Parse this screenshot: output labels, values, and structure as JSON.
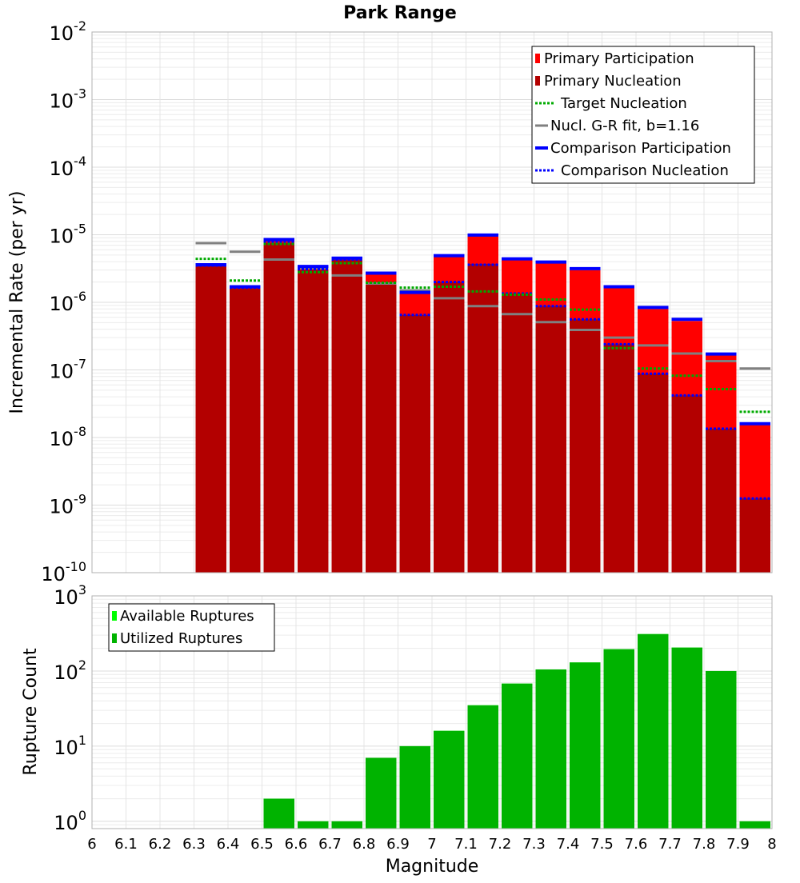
{
  "chart_data": [
    {
      "type": "bar",
      "title": "Park Range",
      "xlabel": "",
      "ylabel": "Incremental Rate (per yr)",
      "xlim": [
        6.0,
        8.0
      ],
      "ylim": [
        1e-10,
        0.01
      ],
      "log_y": true,
      "grid": true,
      "legend_placement": "top-right",
      "x": [
        6.35,
        6.45,
        6.55,
        6.65,
        6.75,
        6.85,
        6.95,
        7.05,
        7.15,
        7.25,
        7.35,
        7.45,
        7.55,
        7.65,
        7.75,
        7.85,
        7.95
      ],
      "series": [
        {
          "name": "Primary Participation",
          "style": "bar",
          "color": "#ff0000",
          "values": [
            3.5e-06,
            1.65e-06,
            8.3e-06,
            3.3e-06,
            4.4e-06,
            2.6e-06,
            1.35e-06,
            4.7e-06,
            9.5e-06,
            4.3e-06,
            3.8e-06,
            3e-06,
            1.65e-06,
            8e-07,
            5.3e-07,
            1.65e-07,
            1.55e-08
          ]
        },
        {
          "name": "Primary Nucleation",
          "style": "bar",
          "color": "#b30000",
          "values": [
            3.4e-06,
            1.6e-06,
            7.5e-06,
            3e-06,
            4.2e-06,
            2e-06,
            6.5e-07,
            2e-06,
            3.7e-06,
            1.35e-06,
            8.8e-07,
            5.6e-07,
            2.4e-07,
            8.8e-08,
            4.2e-08,
            1.35e-08,
            1.25e-09
          ]
        },
        {
          "name": "Target Nucleation",
          "style": "dotted",
          "color": "#00aa00",
          "values": [
            4.4e-06,
            2.1e-06,
            7.3e-06,
            2.8e-06,
            3.8e-06,
            1.95e-06,
            1.65e-06,
            1.7e-06,
            1.45e-06,
            1.3e-06,
            1.1e-06,
            7.8e-07,
            2.1e-07,
            1.05e-07,
            8.2e-08,
            5.2e-08,
            2.4e-08
          ]
        },
        {
          "name": "Nucl. G-R fit, b=1.16",
          "style": "solid",
          "color": "#808080",
          "values": [
            7.5e-06,
            5.6e-06,
            4.3e-06,
            3.2e-06,
            2.5e-06,
            1.9e-06,
            1.5e-06,
            1.15e-06,
            8.8e-07,
            6.7e-07,
            5.1e-07,
            3.9e-07,
            3e-07,
            2.3e-07,
            1.75e-07,
            1.35e-07,
            1.05e-07
          ]
        },
        {
          "name": "Comparison Participation",
          "style": "solid",
          "color": "#0000ff",
          "values": [
            3.6e-06,
            1.7e-06,
            8.5e-06,
            3.4e-06,
            4.5e-06,
            2.7e-06,
            1.4e-06,
            4.9e-06,
            9.9e-06,
            4.4e-06,
            3.95e-06,
            3.15e-06,
            1.7e-06,
            8.4e-07,
            5.6e-07,
            1.72e-07,
            1.6e-08
          ]
        },
        {
          "name": "Comparison Nucleation",
          "style": "dotted",
          "color": "#0000ff",
          "values": [
            3.5e-06,
            1.65e-06,
            7.8e-06,
            3.1e-06,
            4.3e-06,
            1.95e-06,
            6.5e-07,
            2e-06,
            3.6e-06,
            1.35e-06,
            8.8e-07,
            5.6e-07,
            2.4e-07,
            8.8e-08,
            4.2e-08,
            1.35e-08,
            1.25e-09
          ]
        }
      ]
    },
    {
      "type": "bar",
      "title": "",
      "xlabel": "Magnitude",
      "ylabel": "Rupture Count",
      "xlim": [
        6.0,
        8.0
      ],
      "ylim": [
        0.8,
        1000
      ],
      "log_y": true,
      "grid": true,
      "legend_placement": "top-left",
      "x": [
        6.55,
        6.65,
        6.75,
        6.85,
        6.95,
        7.05,
        7.15,
        7.25,
        7.35,
        7.45,
        7.55,
        7.65,
        7.75,
        7.85,
        7.95
      ],
      "series": [
        {
          "name": "Available Ruptures",
          "style": "bar",
          "color": "#00ff00",
          "values": [
            2,
            1,
            1,
            7,
            10,
            16,
            35,
            68,
            105,
            130,
            195,
            310,
            205,
            100,
            1
          ]
        },
        {
          "name": "Utilized Ruptures",
          "style": "bar",
          "color": "#00b300",
          "values": [
            2,
            1,
            1,
            7,
            10,
            16,
            35,
            68,
            105,
            130,
            195,
            310,
            205,
            100,
            1
          ]
        }
      ]
    }
  ],
  "top_axis": {
    "y_ticks": [
      {
        "base": "10",
        "exp": "-2"
      },
      {
        "base": "10",
        "exp": "-3"
      },
      {
        "base": "10",
        "exp": "-4"
      },
      {
        "base": "10",
        "exp": "-5"
      },
      {
        "base": "10",
        "exp": "-6"
      },
      {
        "base": "10",
        "exp": "-7"
      },
      {
        "base": "10",
        "exp": "-8"
      },
      {
        "base": "10",
        "exp": "-9"
      },
      {
        "base": "10",
        "exp": "-10"
      }
    ]
  },
  "bottom_axis": {
    "y_ticks": [
      {
        "base": "10",
        "exp": "3"
      },
      {
        "base": "10",
        "exp": "2"
      },
      {
        "base": "10",
        "exp": "1"
      },
      {
        "base": "10",
        "exp": "0"
      }
    ],
    "x_ticks": [
      "6",
      "6.1",
      "6.2",
      "6.3",
      "6.4",
      "6.5",
      "6.6",
      "6.7",
      "6.8",
      "6.9",
      "7",
      "7.1",
      "7.2",
      "7.3",
      "7.4",
      "7.5",
      "7.6",
      "7.7",
      "7.8",
      "7.9",
      "8"
    ]
  }
}
